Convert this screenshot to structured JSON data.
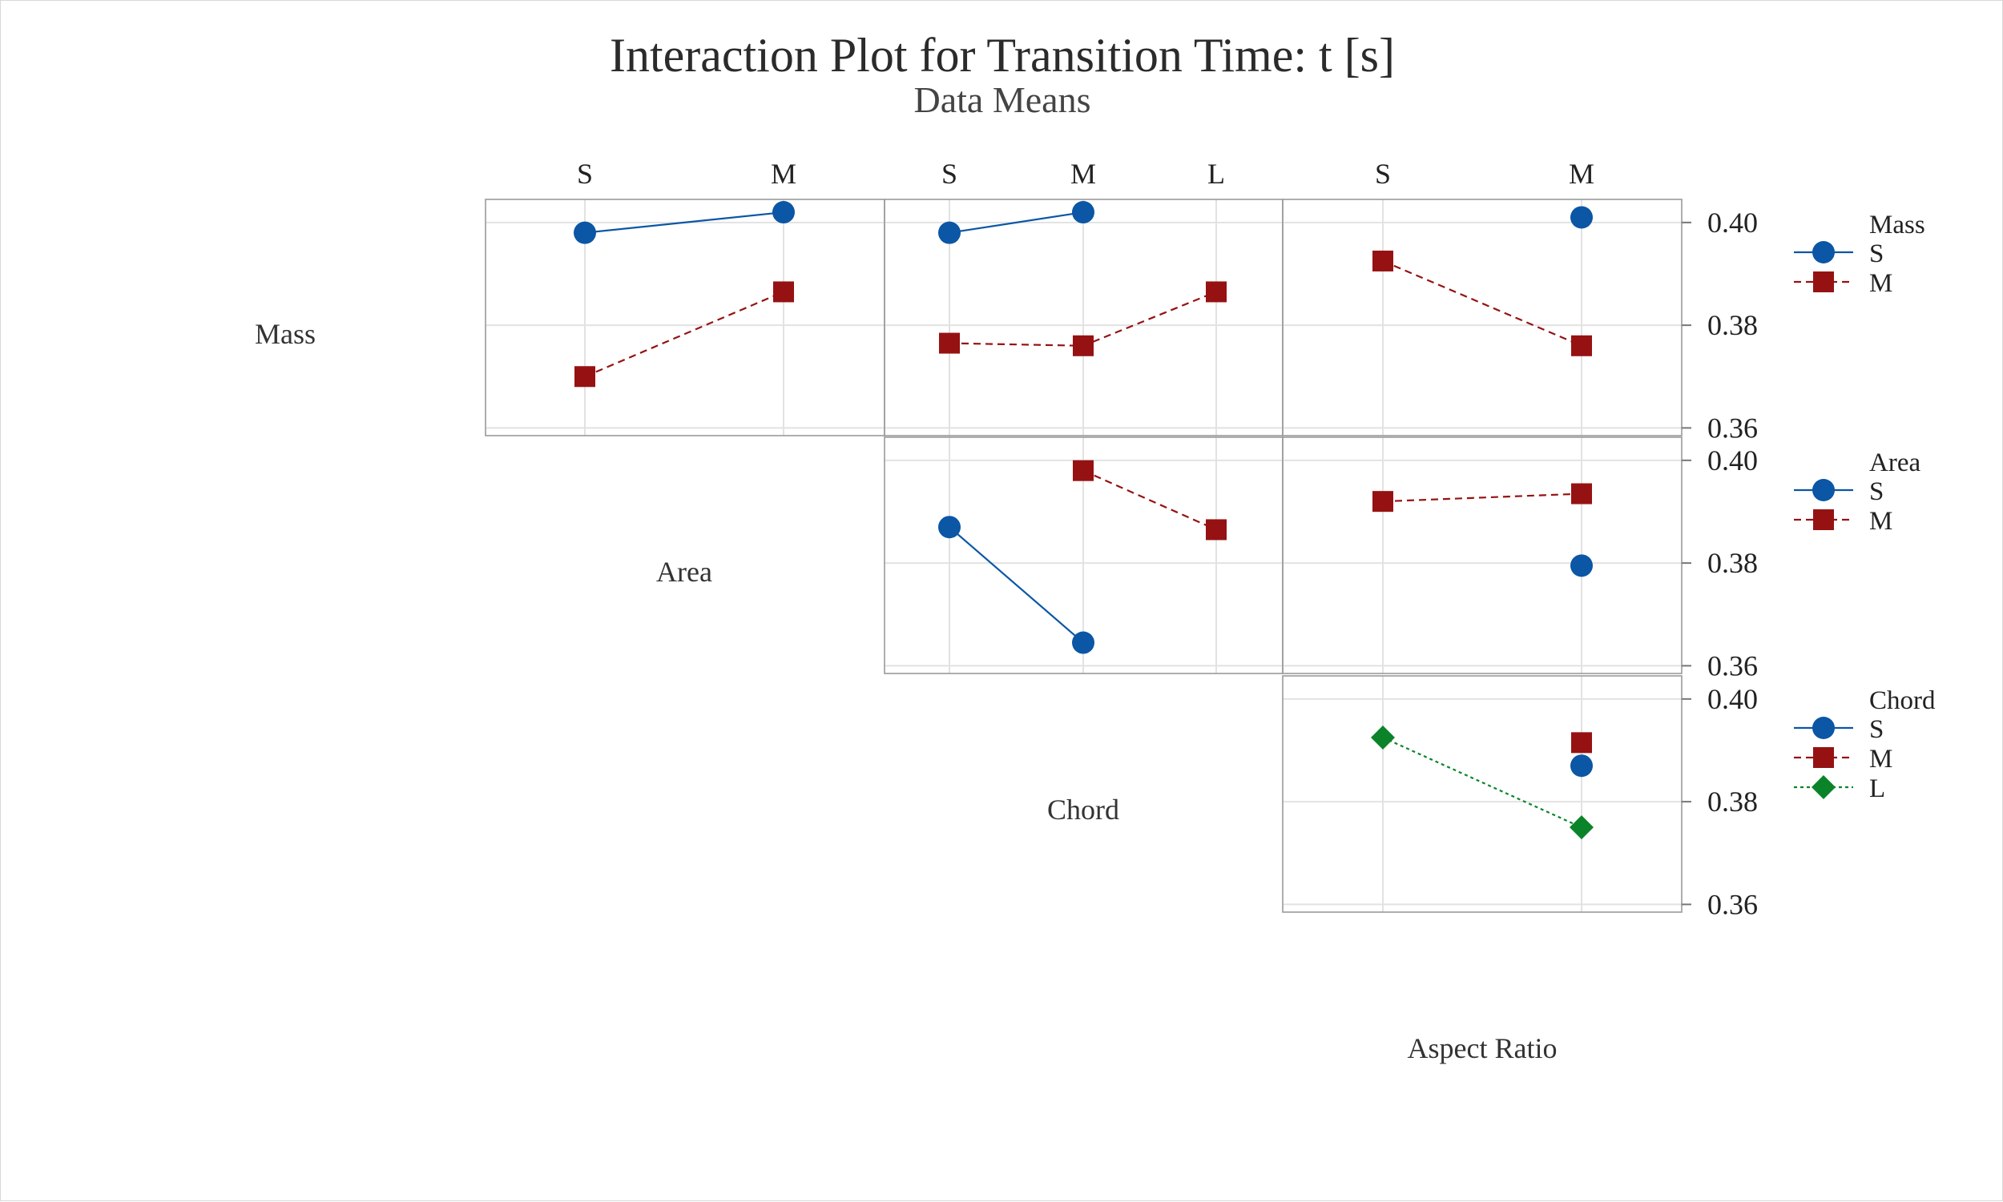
{
  "chart_data": {
    "type": "line",
    "title": "Interaction Plot for Transition Time: t [s]",
    "subtitle": "Data Means",
    "factors": [
      {
        "name": "Mass",
        "levels": [
          "S",
          "M"
        ]
      },
      {
        "name": "Area",
        "levels": [
          "S",
          "M",
          "L"
        ]
      },
      {
        "name": "Chord",
        "levels": [
          "S",
          "M",
          "L"
        ]
      },
      {
        "name": "Aspect Ratio",
        "levels": [
          "S",
          "M"
        ]
      }
    ],
    "ylim": [
      0.36,
      0.405
    ],
    "yticks": [
      "0.36",
      "0.38",
      "0.40"
    ],
    "grid": true,
    "colors": {
      "S": "#0b56a5",
      "M": "#961212",
      "L": "#0b8429"
    },
    "markers": {
      "S": "circle",
      "M": "square",
      "L": "diamond"
    },
    "panels": [
      {
        "row_factor": "Mass",
        "col_factor": "Mass",
        "x_levels": [
          "S",
          "M"
        ],
        "series": [
          {
            "name": "S",
            "values": [
              0.398,
              0.402
            ]
          },
          {
            "name": "M",
            "values": [
              0.37,
              0.3865
            ]
          }
        ]
      },
      {
        "row_factor": "Mass",
        "col_factor": "Area",
        "x_levels": [
          "S",
          "M",
          "L"
        ],
        "series": [
          {
            "name": "S",
            "values": [
              0.398,
              0.402,
              null
            ]
          },
          {
            "name": "M",
            "values": [
              0.3765,
              0.376,
              0.3865
            ]
          }
        ]
      },
      {
        "row_factor": "Mass",
        "col_factor": "Aspect Ratio",
        "x_levels": [
          "S",
          "M"
        ],
        "series": [
          {
            "name": "S",
            "values": [
              null,
              0.401
            ]
          },
          {
            "name": "M",
            "values": [
              0.3925,
              0.376
            ]
          }
        ]
      },
      {
        "row_factor": "Area",
        "col_factor": "Area",
        "x_levels": [
          "S",
          "M",
          "L"
        ],
        "series": [
          {
            "name": "S",
            "values": [
              0.387,
              0.3645,
              null
            ]
          },
          {
            "name": "M",
            "values": [
              null,
              0.398,
              0.3865
            ]
          }
        ]
      },
      {
        "row_factor": "Area",
        "col_factor": "Aspect Ratio",
        "x_levels": [
          "S",
          "M"
        ],
        "series": [
          {
            "name": "S",
            "values": [
              null,
              0.3795
            ]
          },
          {
            "name": "M",
            "values": [
              0.392,
              0.3935
            ]
          }
        ]
      },
      {
        "row_factor": "Chord",
        "col_factor": "Aspect Ratio",
        "x_levels": [
          "S",
          "M"
        ],
        "series": [
          {
            "name": "S",
            "values": [
              null,
              0.387
            ]
          },
          {
            "name": "M",
            "values": [
              null,
              0.3915
            ]
          },
          {
            "name": "L",
            "values": [
              0.3925,
              0.375
            ]
          }
        ]
      }
    ],
    "legends": [
      {
        "title": "Mass",
        "items": [
          "S",
          "M"
        ]
      },
      {
        "title": "Area",
        "items": [
          "S",
          "M"
        ]
      },
      {
        "title": "Chord",
        "items": [
          "S",
          "M",
          "L"
        ]
      }
    ]
  }
}
